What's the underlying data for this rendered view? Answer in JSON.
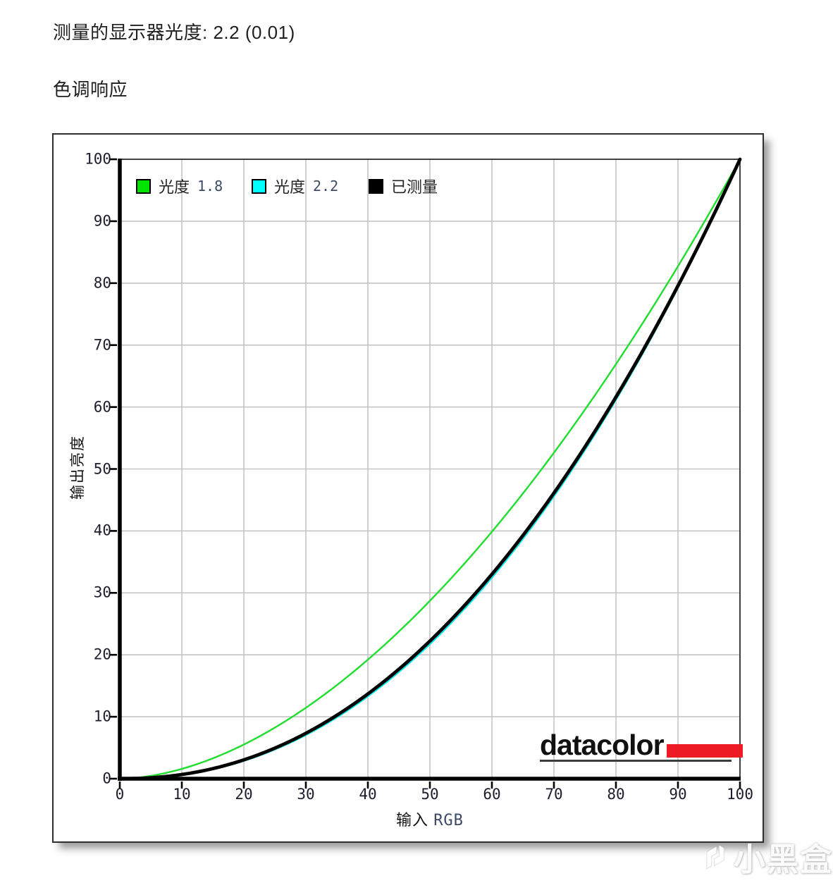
{
  "page": {
    "title": "测量的显示器光度: 2.2 (0.01)",
    "section_heading": "色调响应"
  },
  "chart_data": {
    "type": "line",
    "title": "色调响应",
    "xlabel": "输入 RGB",
    "xlabel_cn": "输入",
    "xlabel_code": "RGB",
    "ylabel": "输出亮度",
    "xlim": [
      0,
      100
    ],
    "ylim": [
      0,
      100
    ],
    "x_ticks": [
      0,
      10,
      20,
      30,
      40,
      50,
      60,
      70,
      80,
      90,
      100
    ],
    "y_ticks": [
      0,
      10,
      20,
      30,
      40,
      50,
      60,
      70,
      80,
      90,
      100
    ],
    "grid": true,
    "legend_position": "inside-top-left",
    "measured_gamma_text": "2.2 (0.01)",
    "series": [
      {
        "name": "光度 1.8",
        "label_cn": "光度",
        "label_num": "1.8",
        "color": "#1FDE2E",
        "swatch_color": "#00E400",
        "gamma": 1.8,
        "line_width": 2.4,
        "curve": "y = 100·(x/100)^1.8"
      },
      {
        "name": "光度 2.2",
        "label_cn": "光度",
        "label_num": "2.2",
        "color": "#00EDED",
        "swatch_color": "#00FFFF",
        "gamma": 2.2,
        "line_width": 2.8,
        "curve": "y = 100·(x/100)^2.2"
      },
      {
        "name": "已测量",
        "label_cn": "已测量",
        "label_num": "",
        "color": "#000000",
        "swatch_color": "#000000",
        "gamma": 2.17,
        "line_width": 4.8,
        "curve": "measured ≈ gamma 2.2"
      }
    ]
  },
  "branding": {
    "logo_text": "datacolor",
    "logo_bar_color": "#ED1C24"
  },
  "watermark": {
    "text": "小黑盒"
  }
}
